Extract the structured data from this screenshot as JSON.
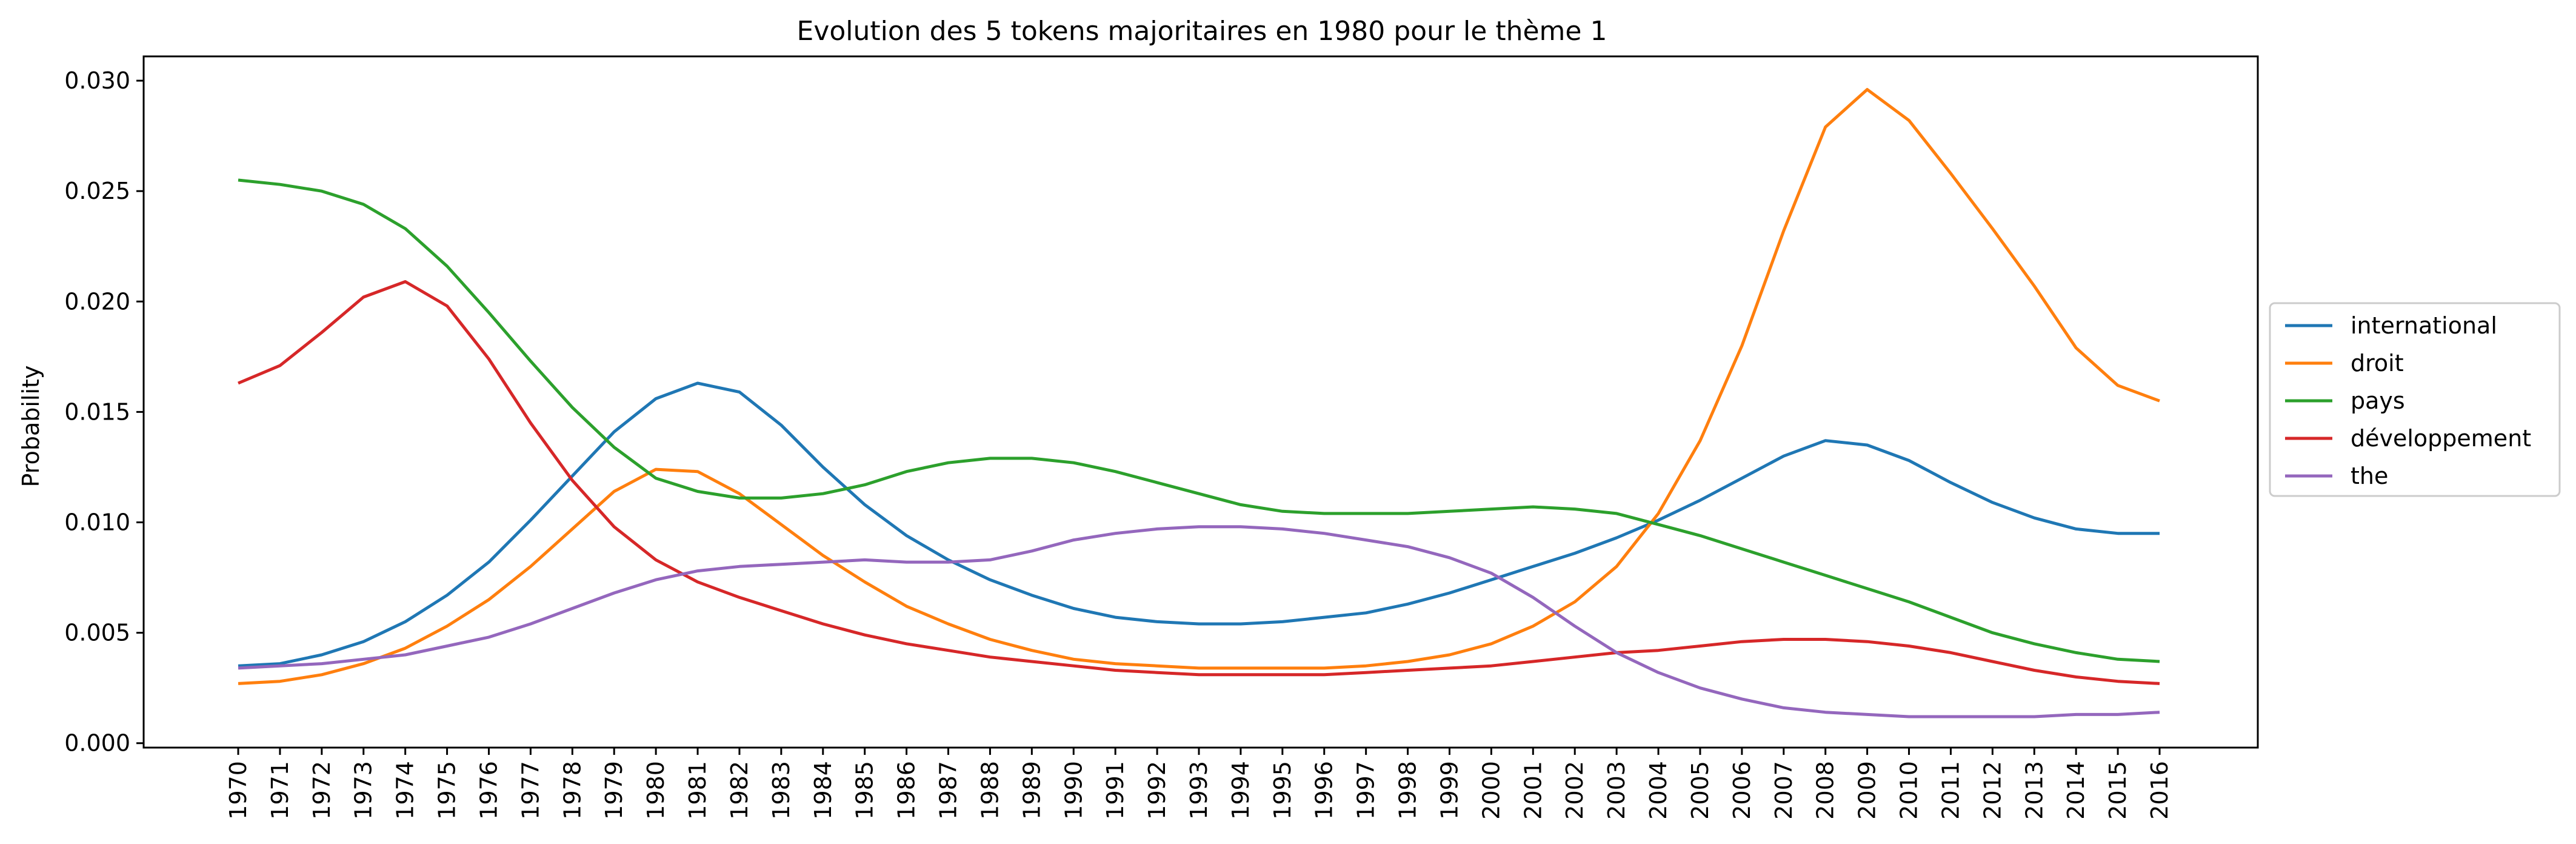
{
  "chart_data": {
    "type": "line",
    "title": "Evolution des 5 tokens majoritaires en 1980 pour le thème 1",
    "xlabel": "",
    "ylabel": "Probability",
    "x": [
      "1970",
      "1971",
      "1972",
      "1973",
      "1974",
      "1975",
      "1976",
      "1977",
      "1978",
      "1979",
      "1980",
      "1981",
      "1982",
      "1983",
      "1984",
      "1985",
      "1986",
      "1987",
      "1988",
      "1989",
      "1990",
      "1991",
      "1992",
      "1993",
      "1994",
      "1995",
      "1996",
      "1997",
      "1998",
      "1999",
      "2000",
      "2001",
      "2002",
      "2003",
      "2004",
      "2005",
      "2006",
      "2007",
      "2008",
      "2009",
      "2010",
      "2011",
      "2012",
      "2013",
      "2014",
      "2015",
      "2016"
    ],
    "ylim": [
      -0.0002,
      0.0311
    ],
    "yticks": [
      {
        "value": 0.0,
        "label": "0.000"
      },
      {
        "value": 0.005,
        "label": "0.005"
      },
      {
        "value": 0.01,
        "label": "0.010"
      },
      {
        "value": 0.015,
        "label": "0.015"
      },
      {
        "value": 0.02,
        "label": "0.020"
      },
      {
        "value": 0.025,
        "label": "0.025"
      },
      {
        "value": 0.03,
        "label": "0.030"
      }
    ],
    "legend_position": "right-center outside",
    "grid": false,
    "series": [
      {
        "name": "international",
        "color": "#1f77b4",
        "values": [
          0.0035,
          0.0036,
          0.004,
          0.0046,
          0.0055,
          0.0067,
          0.0082,
          0.0101,
          0.0121,
          0.0141,
          0.0156,
          0.0163,
          0.0159,
          0.0144,
          0.0125,
          0.0108,
          0.0094,
          0.0083,
          0.0074,
          0.0067,
          0.0061,
          0.0057,
          0.0055,
          0.0054,
          0.0054,
          0.0055,
          0.0057,
          0.0059,
          0.0063,
          0.0068,
          0.0074,
          0.008,
          0.0086,
          0.0093,
          0.0101,
          0.011,
          0.012,
          0.013,
          0.0137,
          0.0135,
          0.0128,
          0.0118,
          0.0109,
          0.0102,
          0.0097,
          0.0095,
          0.0095
        ]
      },
      {
        "name": "droit",
        "color": "#ff7f0e",
        "values": [
          0.0027,
          0.0028,
          0.0031,
          0.0036,
          0.0043,
          0.0053,
          0.0065,
          0.008,
          0.0097,
          0.0114,
          0.0124,
          0.0123,
          0.0113,
          0.0099,
          0.0085,
          0.0073,
          0.0062,
          0.0054,
          0.0047,
          0.0042,
          0.0038,
          0.0036,
          0.0035,
          0.0034,
          0.0034,
          0.0034,
          0.0034,
          0.0035,
          0.0037,
          0.004,
          0.0045,
          0.0053,
          0.0064,
          0.008,
          0.0104,
          0.0137,
          0.018,
          0.0232,
          0.0279,
          0.0296,
          0.0282,
          0.0258,
          0.0233,
          0.0207,
          0.0179,
          0.0162,
          0.0155
        ]
      },
      {
        "name": "pays",
        "color": "#2ca02c",
        "values": [
          0.0255,
          0.0253,
          0.025,
          0.0244,
          0.0233,
          0.0216,
          0.0195,
          0.0173,
          0.0152,
          0.0134,
          0.012,
          0.0114,
          0.0111,
          0.0111,
          0.0113,
          0.0117,
          0.0123,
          0.0127,
          0.0129,
          0.0129,
          0.0127,
          0.0123,
          0.0118,
          0.0113,
          0.0108,
          0.0105,
          0.0104,
          0.0104,
          0.0104,
          0.0105,
          0.0106,
          0.0107,
          0.0106,
          0.0104,
          0.0099,
          0.0094,
          0.0088,
          0.0082,
          0.0076,
          0.007,
          0.0064,
          0.0057,
          0.005,
          0.0045,
          0.0041,
          0.0038,
          0.0037
        ]
      },
      {
        "name": "développement",
        "color": "#d62728",
        "values": [
          0.0163,
          0.0171,
          0.0186,
          0.0202,
          0.0209,
          0.0198,
          0.0174,
          0.0145,
          0.0119,
          0.0098,
          0.0083,
          0.0073,
          0.0066,
          0.006,
          0.0054,
          0.0049,
          0.0045,
          0.0042,
          0.0039,
          0.0037,
          0.0035,
          0.0033,
          0.0032,
          0.0031,
          0.0031,
          0.0031,
          0.0031,
          0.0032,
          0.0033,
          0.0034,
          0.0035,
          0.0037,
          0.0039,
          0.0041,
          0.0042,
          0.0044,
          0.0046,
          0.0047,
          0.0047,
          0.0046,
          0.0044,
          0.0041,
          0.0037,
          0.0033,
          0.003,
          0.0028,
          0.0027
        ]
      },
      {
        "name": "the",
        "color": "#9467bd",
        "values": [
          0.0034,
          0.0035,
          0.0036,
          0.0038,
          0.004,
          0.0044,
          0.0048,
          0.0054,
          0.0061,
          0.0068,
          0.0074,
          0.0078,
          0.008,
          0.0081,
          0.0082,
          0.0083,
          0.0082,
          0.0082,
          0.0083,
          0.0087,
          0.0092,
          0.0095,
          0.0097,
          0.0098,
          0.0098,
          0.0097,
          0.0095,
          0.0092,
          0.0089,
          0.0084,
          0.0077,
          0.0066,
          0.0053,
          0.0041,
          0.0032,
          0.0025,
          0.002,
          0.0016,
          0.0014,
          0.0013,
          0.0012,
          0.0012,
          0.0012,
          0.0012,
          0.0013,
          0.0013,
          0.0014
        ]
      }
    ]
  }
}
